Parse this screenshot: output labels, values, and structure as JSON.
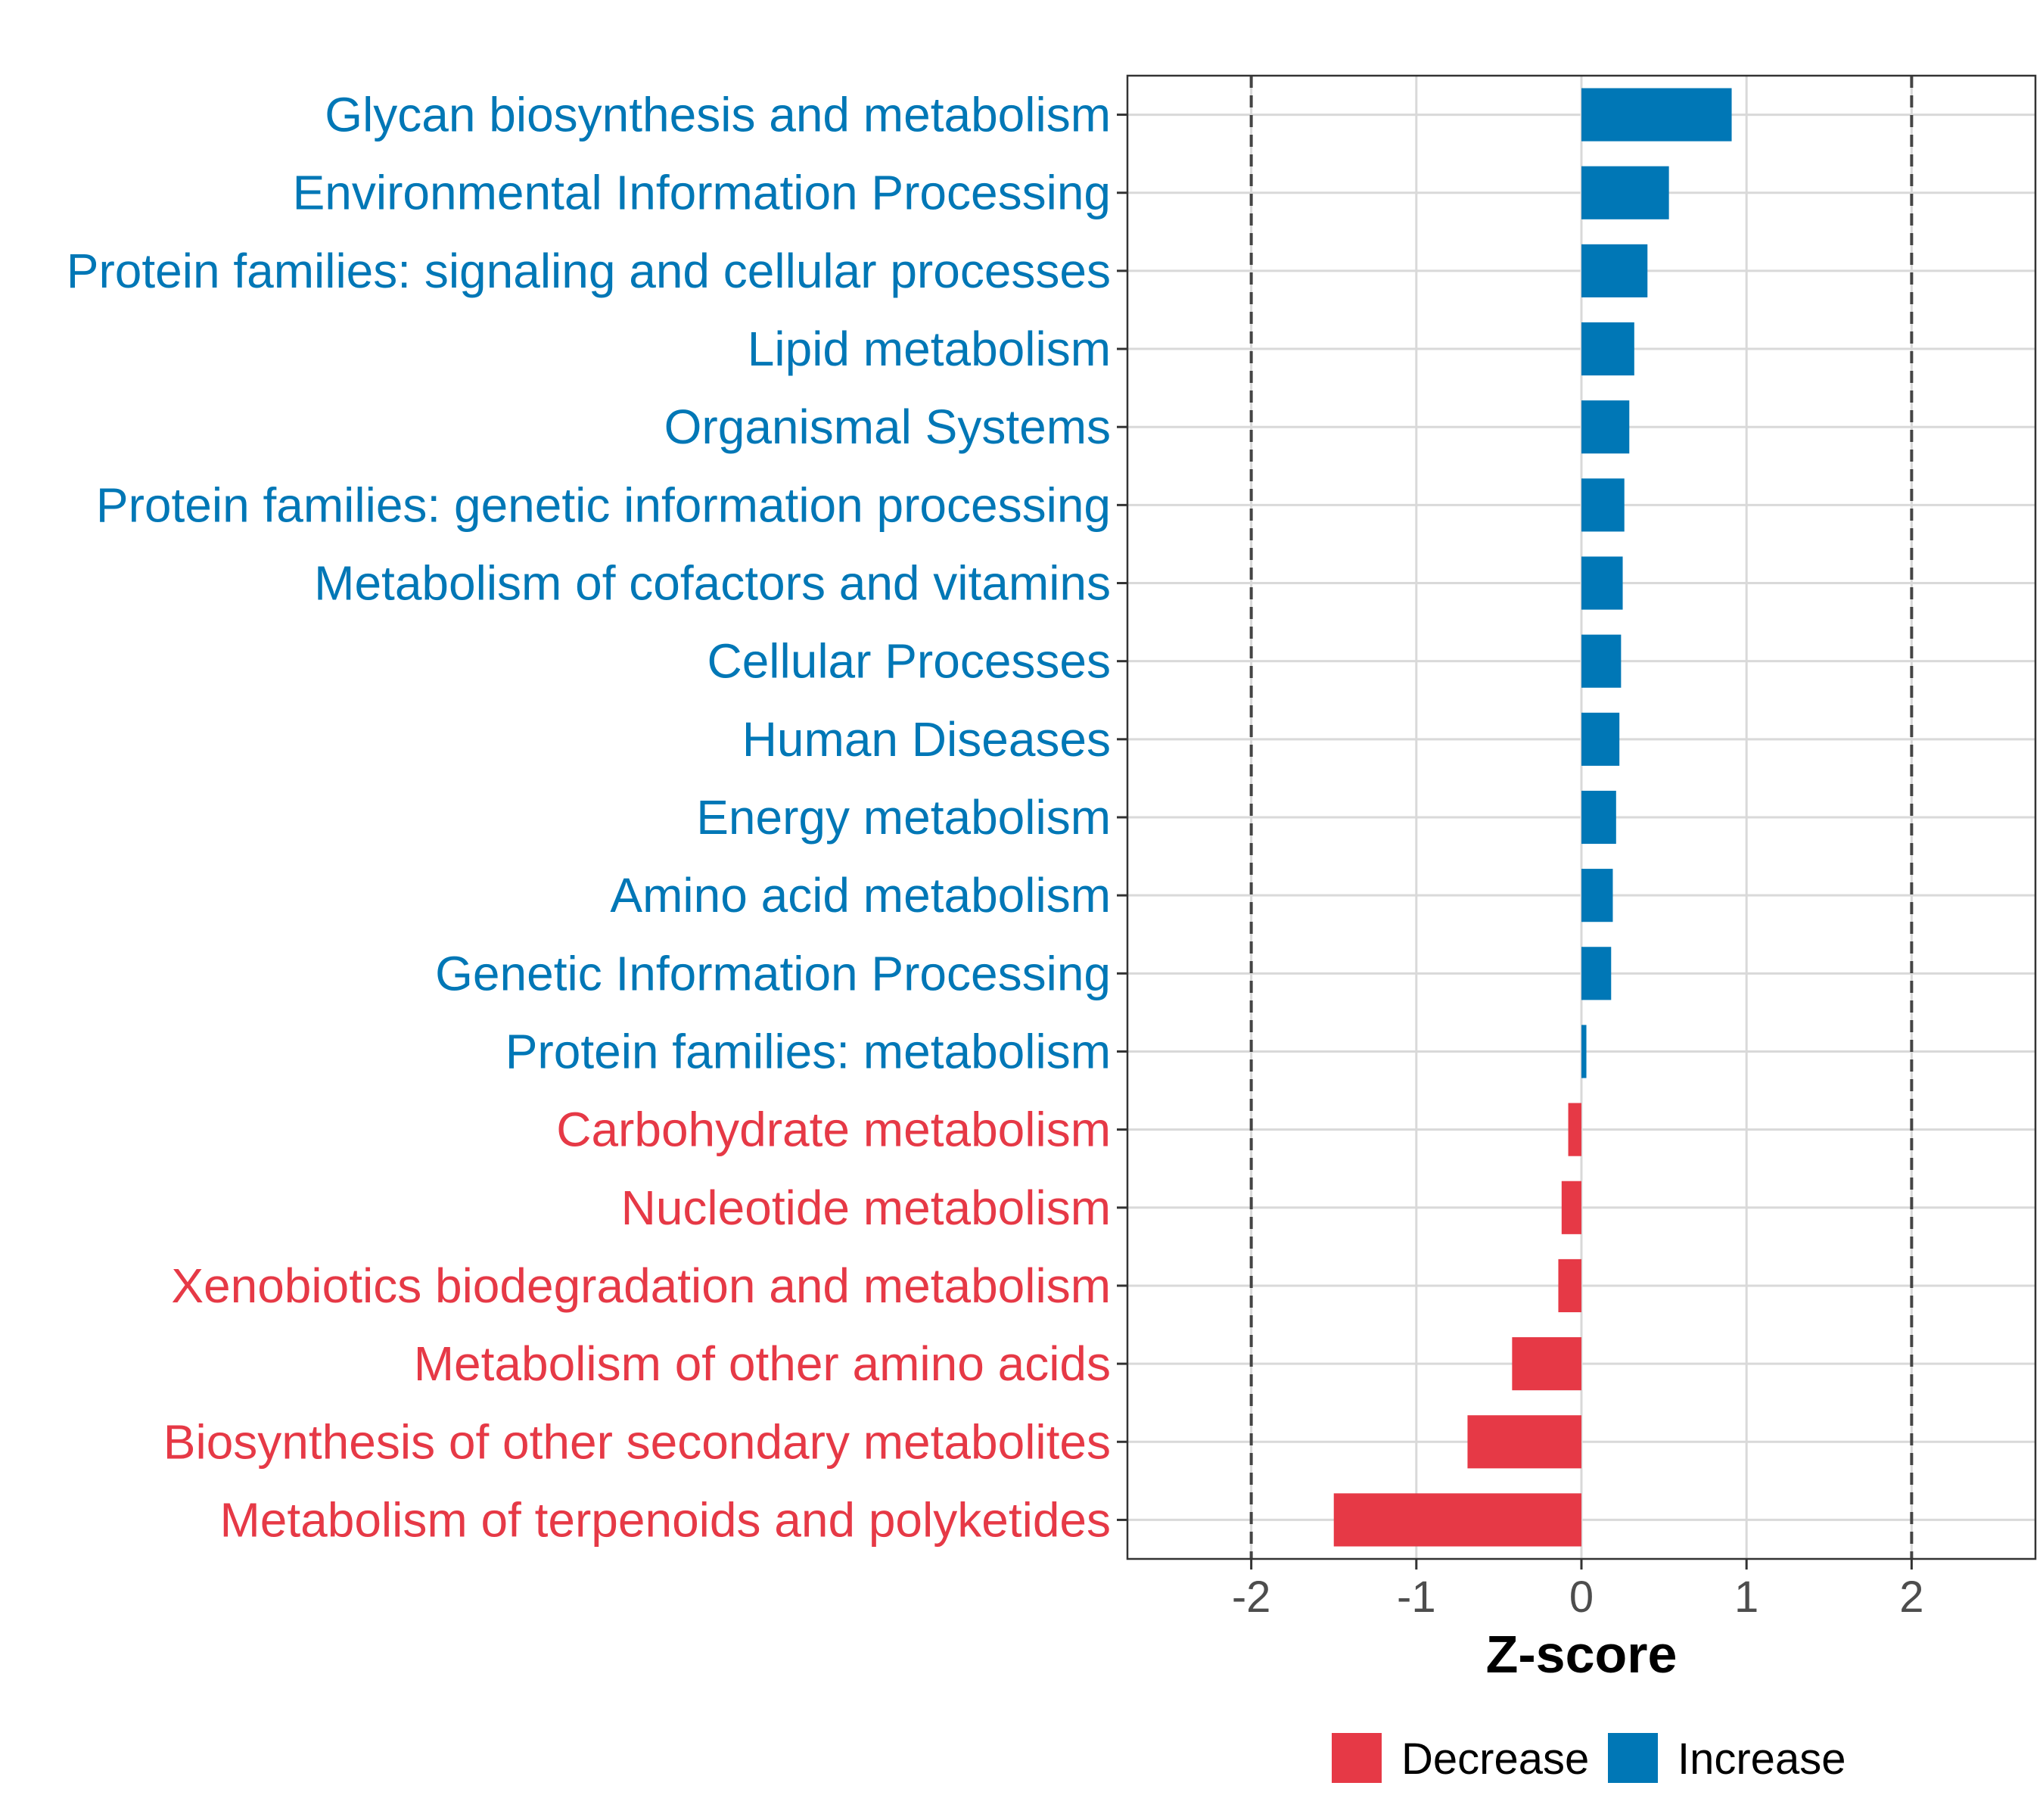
{
  "chart_data": {
    "type": "bar",
    "orientation": "horizontal",
    "xlabel": "Z-score",
    "ylabel": "",
    "xlim": [
      -2.75,
      2.75
    ],
    "x_ticks": [
      -2,
      -1,
      0,
      1,
      2
    ],
    "x_tick_labels": [
      "-2",
      "-1",
      "0",
      "1",
      "2"
    ],
    "reference_lines": [
      -2,
      2
    ],
    "grid": true,
    "categories": [
      "Glycan biosynthesis and metabolism",
      "Environmental Information Processing",
      "Protein families: signaling and cellular processes",
      "Lipid metabolism",
      "Organismal Systems",
      "Protein families: genetic information processing",
      "Metabolism of cofactors and vitamins",
      "Cellular Processes",
      "Human Diseases",
      "Energy metabolism",
      "Amino acid metabolism",
      "Genetic Information Processing",
      "Protein families: metabolism",
      "Carbohydrate metabolism",
      "Nucleotide metabolism",
      "Xenobiotics biodegradation and metabolism",
      "Metabolism of other amino acids",
      "Biosynthesis of other secondary metabolites",
      "Metabolism of terpenoids and polyketides"
    ],
    "values": [
      0.91,
      0.53,
      0.4,
      0.32,
      0.29,
      0.26,
      0.25,
      0.24,
      0.23,
      0.21,
      0.19,
      0.18,
      0.03,
      -0.08,
      -0.12,
      -0.14,
      -0.42,
      -0.69,
      -1.5
    ],
    "groups": [
      "Increase",
      "Increase",
      "Increase",
      "Increase",
      "Increase",
      "Increase",
      "Increase",
      "Increase",
      "Increase",
      "Increase",
      "Increase",
      "Increase",
      "Increase",
      "Decrease",
      "Decrease",
      "Decrease",
      "Decrease",
      "Decrease",
      "Decrease"
    ],
    "legend": [
      {
        "label": "Decrease",
        "color": "#E63946"
      },
      {
        "label": "Increase",
        "color": "#0077B6"
      }
    ],
    "legend_position": "bottom"
  }
}
